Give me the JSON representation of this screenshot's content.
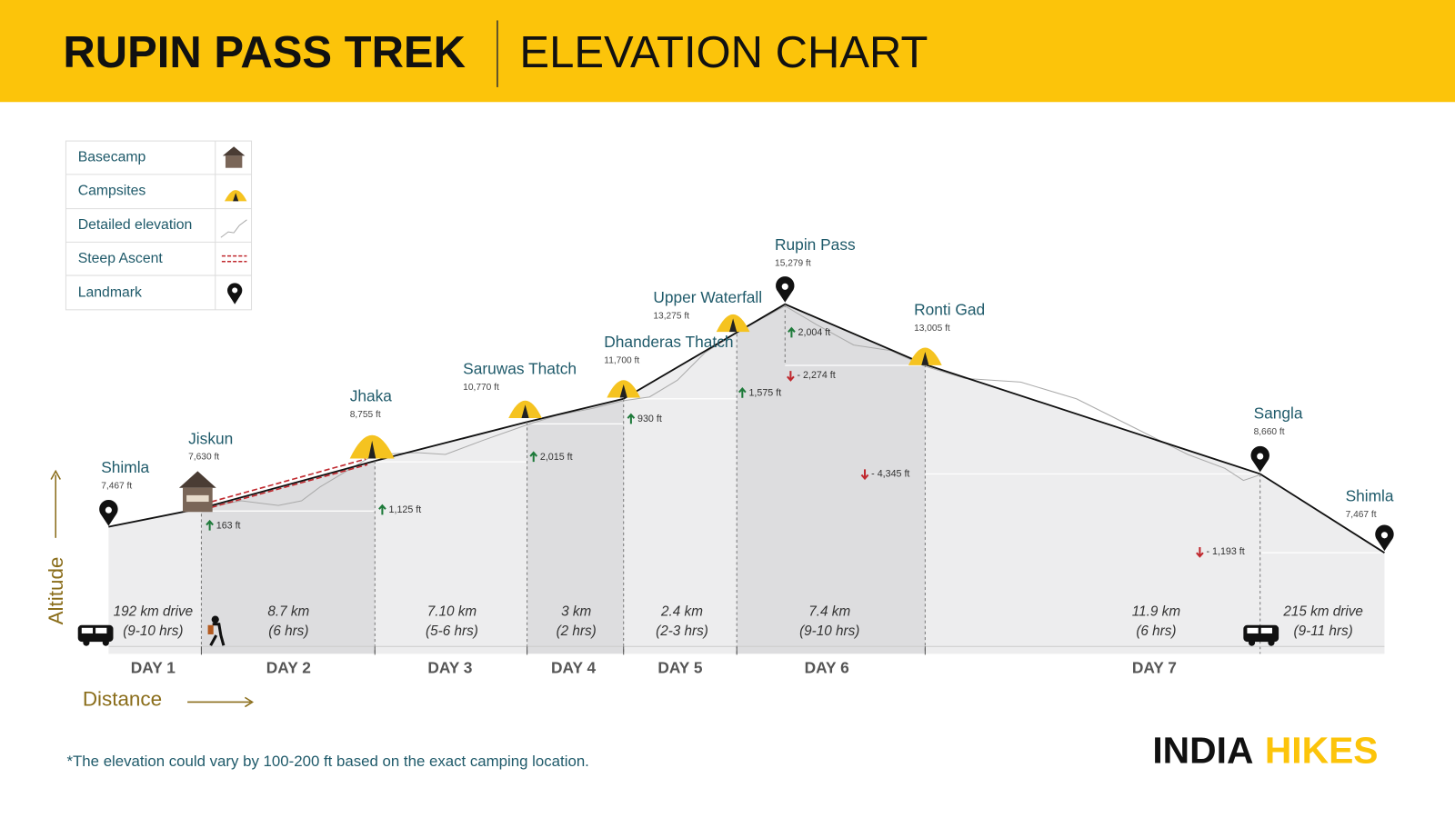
{
  "header": {
    "title": "RUPIN PASS TREK",
    "subtitle": "ELEVATION CHART"
  },
  "legend": [
    {
      "label": "Basecamp"
    },
    {
      "label": "Campsites"
    },
    {
      "label": "Detailed elevation"
    },
    {
      "label": "Steep Ascent"
    },
    {
      "label": "Landmark"
    }
  ],
  "landmarks": [
    {
      "name": "Shimla",
      "elevation": "7,467 ft"
    },
    {
      "name": "Jiskun",
      "elevation": "7,630 ft"
    },
    {
      "name": "Jhaka",
      "elevation": "8,755 ft"
    },
    {
      "name": "Saruwas Thatch",
      "elevation": "10,770 ft"
    },
    {
      "name": "Dhanderas Thatch",
      "elevation": "11,700 ft"
    },
    {
      "name": "Upper Waterfall",
      "elevation": "13,275 ft"
    },
    {
      "name": "Rupin Pass",
      "elevation": "15,279 ft"
    },
    {
      "name": "Ronti Gad",
      "elevation": "13,005 ft"
    },
    {
      "name": "Sangla",
      "elevation": "8,660 ft"
    },
    {
      "name": "Shimla",
      "elevation": "7,467 ft"
    }
  ],
  "changes": [
    "163 ft",
    "1,125 ft",
    "2,015 ft",
    "930 ft",
    "1,575 ft",
    "2,004 ft",
    "- 2,274 ft",
    "- 4,345 ft",
    "- 1,193 ft"
  ],
  "segments": [
    {
      "distance": "192 km drive",
      "time": "(9-10 hrs)"
    },
    {
      "distance": "8.7 km",
      "time": "(6 hrs)"
    },
    {
      "distance": "7.10 km",
      "time": "(5-6 hrs)"
    },
    {
      "distance": "3 km",
      "time": "(2 hrs)"
    },
    {
      "distance": "2.4 km",
      "time": "(2-3 hrs)"
    },
    {
      "distance": "7.4 km",
      "time": "(9-10 hrs)"
    },
    {
      "distance": "11.9 km",
      "time": "(6 hrs)"
    },
    {
      "distance": "215 km drive",
      "time": "(9-11 hrs)"
    }
  ],
  "days": [
    "DAY 1",
    "DAY 2",
    "DAY 3",
    "DAY 4",
    "DAY 5",
    "DAY 6",
    "DAY 7"
  ],
  "axes": {
    "y": "Altitude",
    "x": "Distance"
  },
  "footnote": "*The elevation could vary by 100-200 ft based on the exact camping location.",
  "brand": {
    "dark": "INDIA",
    "light": "HIKES"
  }
}
